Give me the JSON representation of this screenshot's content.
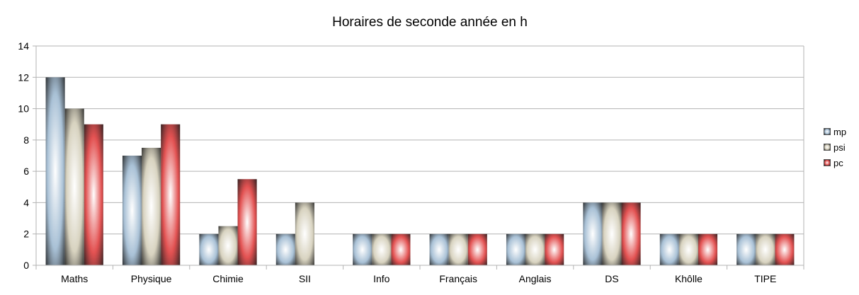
{
  "chart_data": {
    "type": "bar",
    "title": "Horaires de seconde année en h",
    "xlabel": "",
    "ylabel": "",
    "ylim": [
      0,
      14
    ],
    "yticks": [
      0,
      2,
      4,
      6,
      8,
      10,
      12,
      14
    ],
    "grid": true,
    "legend_position": "right",
    "categories": [
      "Maths",
      "Physique",
      "Chimie",
      "SII",
      "Info",
      "Français",
      "Anglais",
      "DS",
      "Khôlle",
      "TIPE"
    ],
    "series": [
      {
        "name": "mp",
        "color": "#a9c1d6",
        "values": [
          12,
          7,
          2,
          2,
          2,
          2,
          2,
          4,
          2,
          2
        ]
      },
      {
        "name": "psi",
        "color": "#d8d3c0",
        "values": [
          10,
          7.5,
          2.5,
          4,
          2,
          2,
          2,
          4,
          2,
          2
        ]
      },
      {
        "name": "pc",
        "color": "#e35252",
        "values": [
          9,
          9,
          5.5,
          0,
          2,
          2,
          2,
          4,
          2,
          2
        ]
      }
    ]
  }
}
